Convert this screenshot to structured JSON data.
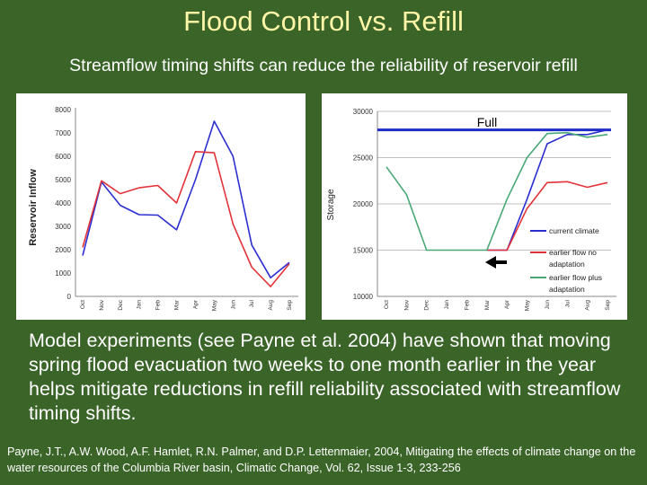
{
  "slide": {
    "title": "Flood Control vs. Refill",
    "subtitle": "Streamflow timing shifts can reduce the reliability of reservoir refill",
    "body": "Model experiments (see Payne et al. 2004) have shown that moving spring flood evacuation two weeks to one month earlier in the year helps mitigate reductions in refill reliability associated with streamflow timing shifts.",
    "citation": "Payne, J.T., A.W. Wood, A.F. Hamlet, R.N. Palmer, and D.P. Lettenmaier, 2004, Mitigating the effects of climate change on the water resources of the Columbia River basin, Climatic Change, Vol. 62, Issue 1-3, 233-256"
  },
  "colors": {
    "blue": "#2b2fd0",
    "red": "#e2333a",
    "green": "#49a876",
    "full_line": "#1f2bc8"
  },
  "chart_data": [
    {
      "type": "line",
      "title": "",
      "xlabel": "",
      "ylabel": "Reservoir Inflow",
      "ylim": [
        0,
        8000
      ],
      "yticks": [
        0,
        1000,
        2000,
        3000,
        4000,
        5000,
        6000,
        7000,
        8000
      ],
      "categories": [
        "Oct",
        "Nov",
        "Dec",
        "Jan",
        "Feb",
        "Mar",
        "Apr",
        "May",
        "Jun",
        "Jul",
        "Aug",
        "Sep"
      ],
      "grid": false,
      "series": [
        {
          "color": "blue",
          "values": [
            1750,
            4900,
            3900,
            3500,
            3480,
            2850,
            5000,
            7500,
            6000,
            2200,
            800,
            1450
          ]
        },
        {
          "color": "red",
          "values": [
            2100,
            4950,
            4400,
            4650,
            4750,
            4000,
            6200,
            6150,
            3100,
            1250,
            420,
            1400
          ]
        }
      ]
    },
    {
      "type": "line",
      "title": "",
      "xlabel": "",
      "ylabel": "Storage",
      "ylim": [
        10000,
        30000
      ],
      "yticks": [
        10000,
        15000,
        20000,
        25000,
        30000
      ],
      "categories": [
        "Oct",
        "Nov",
        "Dec",
        "Jan",
        "Feb",
        "Mar",
        "Apr",
        "May",
        "Jun",
        "Jul",
        "Aug",
        "Sep"
      ],
      "grid": true,
      "full_label": "Full",
      "full_value": 28000,
      "legend_placement": "bottom-right",
      "series": [
        {
          "name": "current climate",
          "color": "blue",
          "values": [
            null,
            null,
            null,
            null,
            null,
            15000,
            15000,
            20500,
            26500,
            27500,
            27500,
            28000
          ]
        },
        {
          "name": "earlier flow no adaptation",
          "color": "red",
          "values": [
            null,
            null,
            null,
            null,
            null,
            15000,
            15000,
            19500,
            22300,
            22400,
            21800,
            22300
          ]
        },
        {
          "name": "earlier flow plus adaptation",
          "color": "green",
          "values": [
            24000,
            21000,
            15000,
            15000,
            15000,
            15000,
            20500,
            25000,
            27600,
            27700,
            27200,
            27500
          ]
        }
      ],
      "legend": {
        "current": "current climate",
        "no_adapt_1": "earlier flow no",
        "no_adapt_2": "adaptation",
        "plus_adapt_1": "earlier flow plus",
        "plus_adapt_2": "adaptation"
      }
    }
  ]
}
